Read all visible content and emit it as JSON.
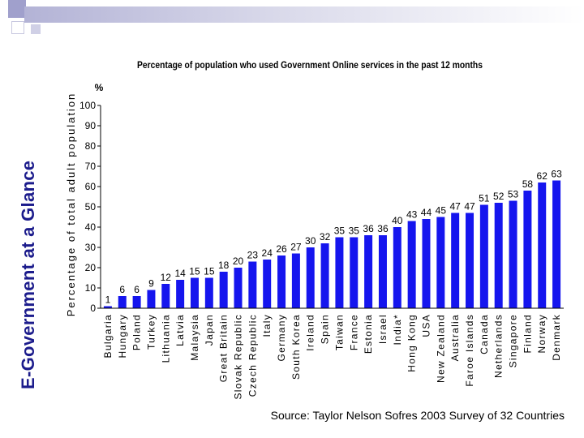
{
  "slide": {
    "side_title": "E-Government at a Glance",
    "source": "Source: Taylor Nelson Sofres 2003 Survey of 32 Countries",
    "accent": "#1c1c8c"
  },
  "chart_data": {
    "type": "bar",
    "title": "Percentage of population who used Government Online services in the past 12 months",
    "ylabel": "Percentage of total adult population",
    "yunit": "%",
    "ylim": [
      0,
      100
    ],
    "yticks": [
      0,
      10,
      20,
      30,
      40,
      50,
      60,
      70,
      80,
      90,
      100
    ],
    "grid": false,
    "bar_color": "#1515ee",
    "categories": [
      "Bulgaria",
      "Hungary",
      "Poland",
      "Turkey",
      "Lithuania",
      "Latvia",
      "Malaysia",
      "Japan",
      "Great Britain",
      "Slovak Republic",
      "Czech Republic",
      "Italy",
      "Germany",
      "South Korea",
      "Ireland",
      "Spain",
      "Taiwan",
      "France",
      "Estonia",
      "Israel",
      "India*",
      "Hong Kong",
      "USA",
      "New Zealand",
      "Australia",
      "Faroe Islands",
      "Canada",
      "Netherlands",
      "Singapore",
      "Finland",
      "Norway",
      "Denmark"
    ],
    "values": [
      1,
      6,
      6,
      9,
      12,
      14,
      15,
      15,
      18,
      20,
      23,
      24,
      26,
      27,
      30,
      32,
      35,
      35,
      36,
      36,
      40,
      43,
      44,
      45,
      47,
      47,
      51,
      52,
      53,
      58,
      62,
      63
    ]
  }
}
